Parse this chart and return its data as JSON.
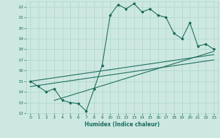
{
  "title": "",
  "xlabel": "Humidex (Indice chaleur)",
  "ylabel": "",
  "xlim": [
    -0.5,
    23.5
  ],
  "ylim": [
    12,
    22.5
  ],
  "yticks": [
    12,
    13,
    14,
    15,
    16,
    17,
    18,
    19,
    20,
    21,
    22
  ],
  "xticks": [
    0,
    1,
    2,
    3,
    4,
    5,
    6,
    7,
    8,
    9,
    10,
    11,
    12,
    13,
    14,
    15,
    16,
    17,
    18,
    19,
    20,
    21,
    22,
    23
  ],
  "bg_color": "#cde8e1",
  "grid_color": "#aad4cc",
  "line_color": "#1a6b5a",
  "line1_x": [
    0,
    1,
    2,
    3,
    4,
    5,
    6,
    7,
    8,
    9,
    10,
    11,
    12,
    13,
    14,
    15,
    16,
    17,
    18,
    19,
    20,
    21,
    22,
    23
  ],
  "line1_y": [
    15.0,
    14.5,
    14.0,
    14.3,
    13.2,
    13.0,
    12.9,
    12.2,
    14.3,
    16.5,
    21.2,
    22.2,
    21.8,
    22.3,
    21.5,
    21.8,
    21.2,
    21.0,
    19.5,
    19.0,
    20.5,
    18.3,
    18.5,
    18.0
  ],
  "line2_x": [
    0,
    23
  ],
  "line2_y": [
    15.0,
    17.5
  ],
  "line3_x": [
    0,
    23
  ],
  "line3_y": [
    14.5,
    17.0
  ],
  "line4_x": [
    3,
    23
  ],
  "line4_y": [
    13.2,
    17.8
  ]
}
